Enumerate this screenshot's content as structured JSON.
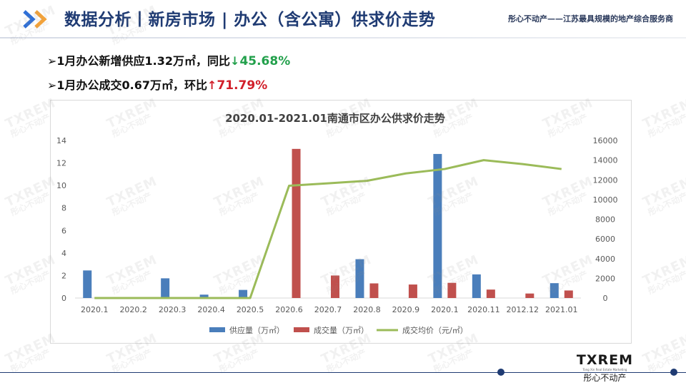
{
  "header": {
    "title": "数据分析丨新房市场 | 办公（含公寓）供求价走势",
    "slogan": "彤心不动产——江苏最具规模的地产综合服务商"
  },
  "bullets": [
    {
      "prefix": "➢1月办公新增供应1.32万㎡，同比",
      "arrow": "↓",
      "value": "45.68%"
    },
    {
      "prefix": "➢1月办公成交0.67万㎡，环比",
      "arrow": "↑",
      "value": "71.79%"
    }
  ],
  "watermark": {
    "big": "TXREM",
    "small": "彤心不动产"
  },
  "logo": {
    "line1": "TXREM",
    "line2": "Tong Xin Real Estate Marketing",
    "line3": "彤心不动产"
  },
  "colors": {
    "supply": "#4a7ebb",
    "deal": "#c0504d",
    "price": "#9bbb59",
    "title": "#1f3b73"
  },
  "chart_data": {
    "type": "bar",
    "title": "2020.01-2021.01南通市区办公供求价走势",
    "categories": [
      "2020.1",
      "2020.2",
      "2020.3",
      "2020.4",
      "2020.5",
      "2020.6",
      "2020.7",
      "2020.8",
      "2020.9",
      "2020.1",
      "2020.11",
      "2012.12",
      "2021.01"
    ],
    "series": [
      {
        "name": "供应量（万㎡）",
        "type": "bar",
        "axis": "left",
        "values": [
          2.45,
          0,
          1.75,
          0.3,
          0.72,
          0,
          0,
          3.45,
          0,
          12.8,
          2.1,
          0,
          1.32
        ]
      },
      {
        "name": "成交量（万㎡）",
        "type": "bar",
        "axis": "left",
        "values": [
          0,
          0,
          0,
          0,
          0,
          13.25,
          2.0,
          1.3,
          1.2,
          1.35,
          0.75,
          0.4,
          0.67
        ]
      },
      {
        "name": "成交均价（元/㎡）",
        "type": "line",
        "axis": "right",
        "values": [
          0,
          0,
          0,
          0,
          0,
          11400,
          11650,
          11900,
          12650,
          13100,
          14000,
          13600,
          13100
        ]
      }
    ],
    "y_left": {
      "min": 0,
      "max": 14,
      "ticks": [
        "0",
        "2",
        "4",
        "6",
        "8",
        "10",
        "12",
        "14"
      ]
    },
    "y_right": {
      "min": 0,
      "max": 16000,
      "ticks": [
        "0",
        "2000",
        "4000",
        "6000",
        "8000",
        "10000",
        "12000",
        "14000",
        "16000"
      ]
    },
    "grid": false,
    "legend": "bottom"
  }
}
